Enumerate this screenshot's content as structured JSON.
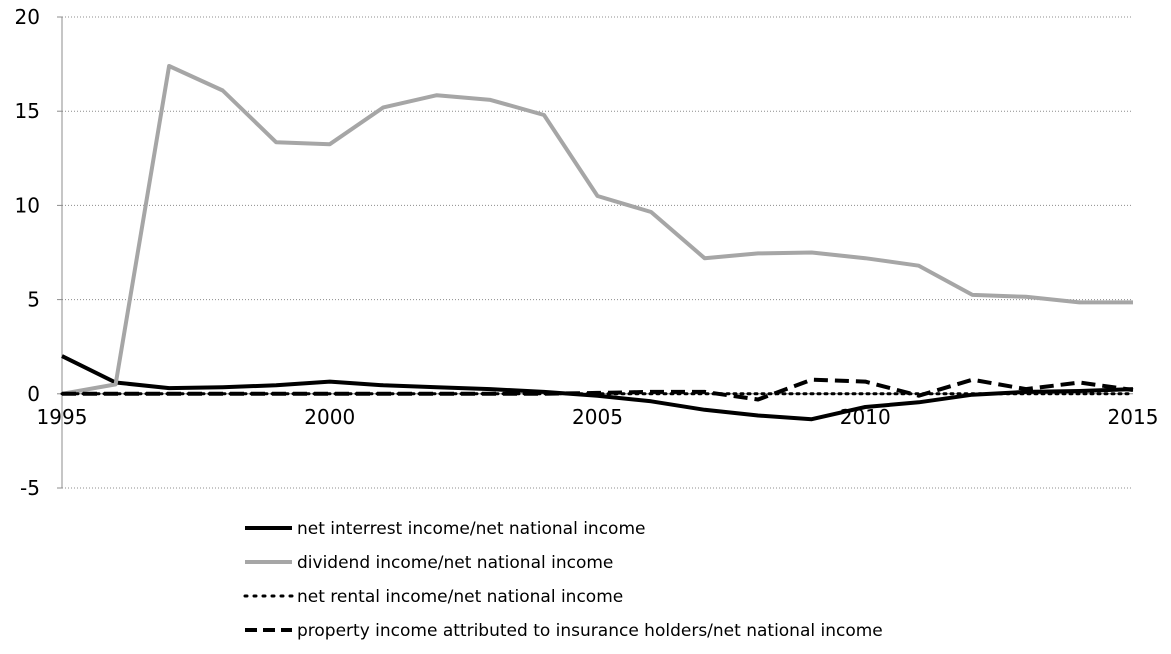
{
  "chart_data": {
    "type": "line",
    "x": [
      1995,
      1996,
      1997,
      1998,
      1999,
      2000,
      2001,
      2002,
      2003,
      2004,
      2005,
      2006,
      2007,
      2008,
      2009,
      2010,
      2011,
      2012,
      2013,
      2014,
      2015
    ],
    "x_ticks": [
      "1995",
      "2000",
      "2005",
      "2010",
      "2015"
    ],
    "y_ticks": [
      "20",
      "15",
      "10",
      "5",
      "0",
      "-5"
    ],
    "ylim": [
      -5,
      20
    ],
    "grid": true,
    "legend_position": "bottom",
    "series": [
      {
        "name": "net interrest income/net national income",
        "color": "#000000",
        "style": "solid",
        "values": [
          2.0,
          0.6,
          0.3,
          0.35,
          0.45,
          0.65,
          0.45,
          0.35,
          0.25,
          0.1,
          -0.1,
          -0.4,
          -0.85,
          -1.15,
          -1.35,
          -0.7,
          -0.45,
          -0.05,
          0.1,
          0.15,
          0.25
        ]
      },
      {
        "name": "dividend income/net national income",
        "color": "#a6a6a6",
        "style": "solid",
        "values": [
          0.0,
          0.5,
          17.4,
          16.1,
          13.35,
          13.25,
          15.2,
          15.85,
          15.6,
          14.8,
          10.5,
          9.65,
          7.2,
          7.45,
          7.5,
          7.2,
          6.8,
          5.25,
          5.15,
          4.85,
          4.85
        ]
      },
      {
        "name": "net rental income/net national income",
        "color": "#000000",
        "style": "dotted",
        "values": [
          0.0,
          0.0,
          0.0,
          0.0,
          0.0,
          0.0,
          0.0,
          0.0,
          0.0,
          0.0,
          0.0,
          0.0,
          0.0,
          0.0,
          0.0,
          0.0,
          0.0,
          0.0,
          0.0,
          0.0,
          0.0
        ]
      },
      {
        "name": "property income attributed to insurance holders/net national income",
        "color": "#000000",
        "style": "dashed",
        "values": [
          0.0,
          0.0,
          0.0,
          0.0,
          0.0,
          0.0,
          0.0,
          0.0,
          0.0,
          0.0,
          0.05,
          0.1,
          0.1,
          -0.3,
          0.75,
          0.65,
          -0.1,
          0.75,
          0.25,
          0.6,
          0.2
        ]
      }
    ]
  }
}
